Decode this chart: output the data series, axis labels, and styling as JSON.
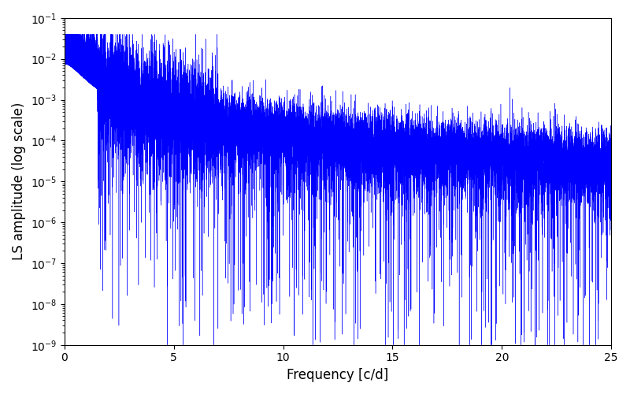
{
  "xlabel": "Frequency [c/d]",
  "ylabel": "LS amplitude (log scale)",
  "title": "",
  "line_color": "#0000ff",
  "xlim": [
    0,
    25
  ],
  "ylim": [
    1e-09,
    0.1
  ],
  "figsize": [
    8.0,
    5.0
  ],
  "dpi": 100,
  "n_points": 15000,
  "freq_max": 25.0,
  "seed": 12345,
  "background_color": "#ffffff",
  "linewidth": 0.3
}
